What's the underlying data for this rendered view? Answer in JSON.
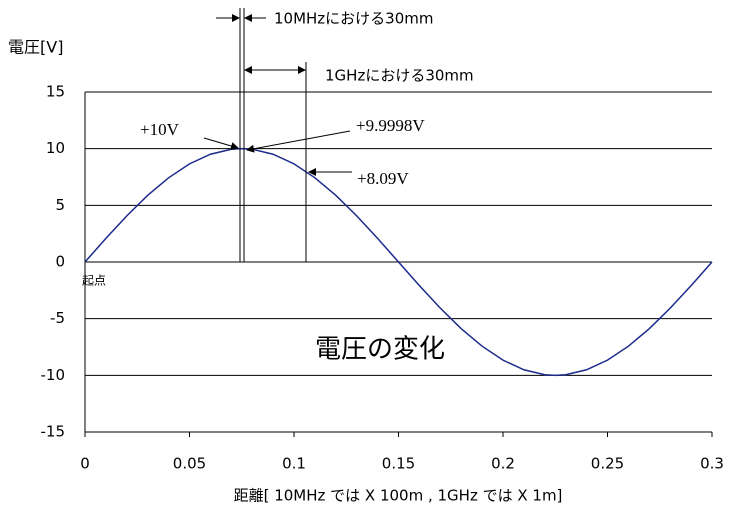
{
  "chart_data": {
    "type": "line",
    "y_label": "電圧[V]",
    "x_label": "距離[ 10MHz では  X 100m , 1GHz では  X 1m]",
    "x": [
      0,
      0.01,
      0.02,
      0.03,
      0.04,
      0.05,
      0.06,
      0.07,
      0.075,
      0.08,
      0.09,
      0.1,
      0.11,
      0.12,
      0.13,
      0.14,
      0.15,
      0.16,
      0.17,
      0.18,
      0.19,
      0.2,
      0.21,
      0.22,
      0.225,
      0.23,
      0.24,
      0.25,
      0.26,
      0.27,
      0.28,
      0.29,
      0.3
    ],
    "series": [
      {
        "color": "#1c2a8c",
        "values": [
          0,
          2.08,
          4.07,
          5.88,
          7.43,
          8.66,
          9.51,
          9.95,
          10,
          9.95,
          9.51,
          8.66,
          7.43,
          5.88,
          4.07,
          2.08,
          0,
          -2.08,
          -4.07,
          -5.88,
          -7.43,
          -8.66,
          -9.51,
          -9.95,
          -10,
          -9.95,
          -9.51,
          -8.66,
          -7.43,
          -5.88,
          -4.07,
          -2.08,
          0
        ]
      }
    ],
    "xlim": [
      0,
      0.3
    ],
    "xticks": [
      0,
      0.05,
      0.1,
      0.15,
      0.2,
      0.25,
      0.3
    ],
    "ylim": [
      -15,
      15
    ],
    "yticks": [
      -15,
      -10,
      -5,
      0,
      5,
      10,
      15
    ],
    "grid": true,
    "annotations": [
      "10MHzにおける30mm",
      "1GHzにおける30mm",
      "+10V",
      "+9.9998V",
      "+8.09V",
      "電圧の変化",
      "起点"
    ]
  }
}
